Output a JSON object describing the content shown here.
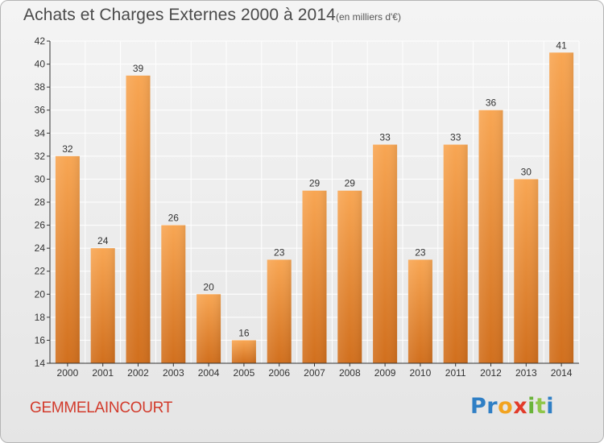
{
  "header": {
    "title": "Achats et Charges Externes 2000 à 2014",
    "subtitle": "(en milliers d'€)"
  },
  "footer": {
    "commune": "GEMMELAINCOURT",
    "logo": "Proxiti"
  },
  "colors": {
    "bar_light": "#f7a450",
    "bar_dark": "#d0701e",
    "grid": "#ffffff",
    "axis": "#333333"
  },
  "chart_data": {
    "type": "bar",
    "title": "Achats et Charges Externes 2000 à 2014",
    "subtitle": "(en milliers d'€)",
    "categories": [
      "2000",
      "2001",
      "2002",
      "2003",
      "2004",
      "2005",
      "2006",
      "2007",
      "2008",
      "2009",
      "2010",
      "2011",
      "2012",
      "2013",
      "2014"
    ],
    "values": [
      32,
      24,
      39,
      26,
      20,
      16,
      23,
      29,
      29,
      33,
      23,
      33,
      36,
      30,
      41
    ],
    "ylim": [
      14,
      42
    ],
    "yticks": [
      14,
      16,
      18,
      20,
      22,
      24,
      26,
      28,
      30,
      32,
      34,
      36,
      38,
      40,
      42
    ],
    "grid": true,
    "data_labels": true
  }
}
